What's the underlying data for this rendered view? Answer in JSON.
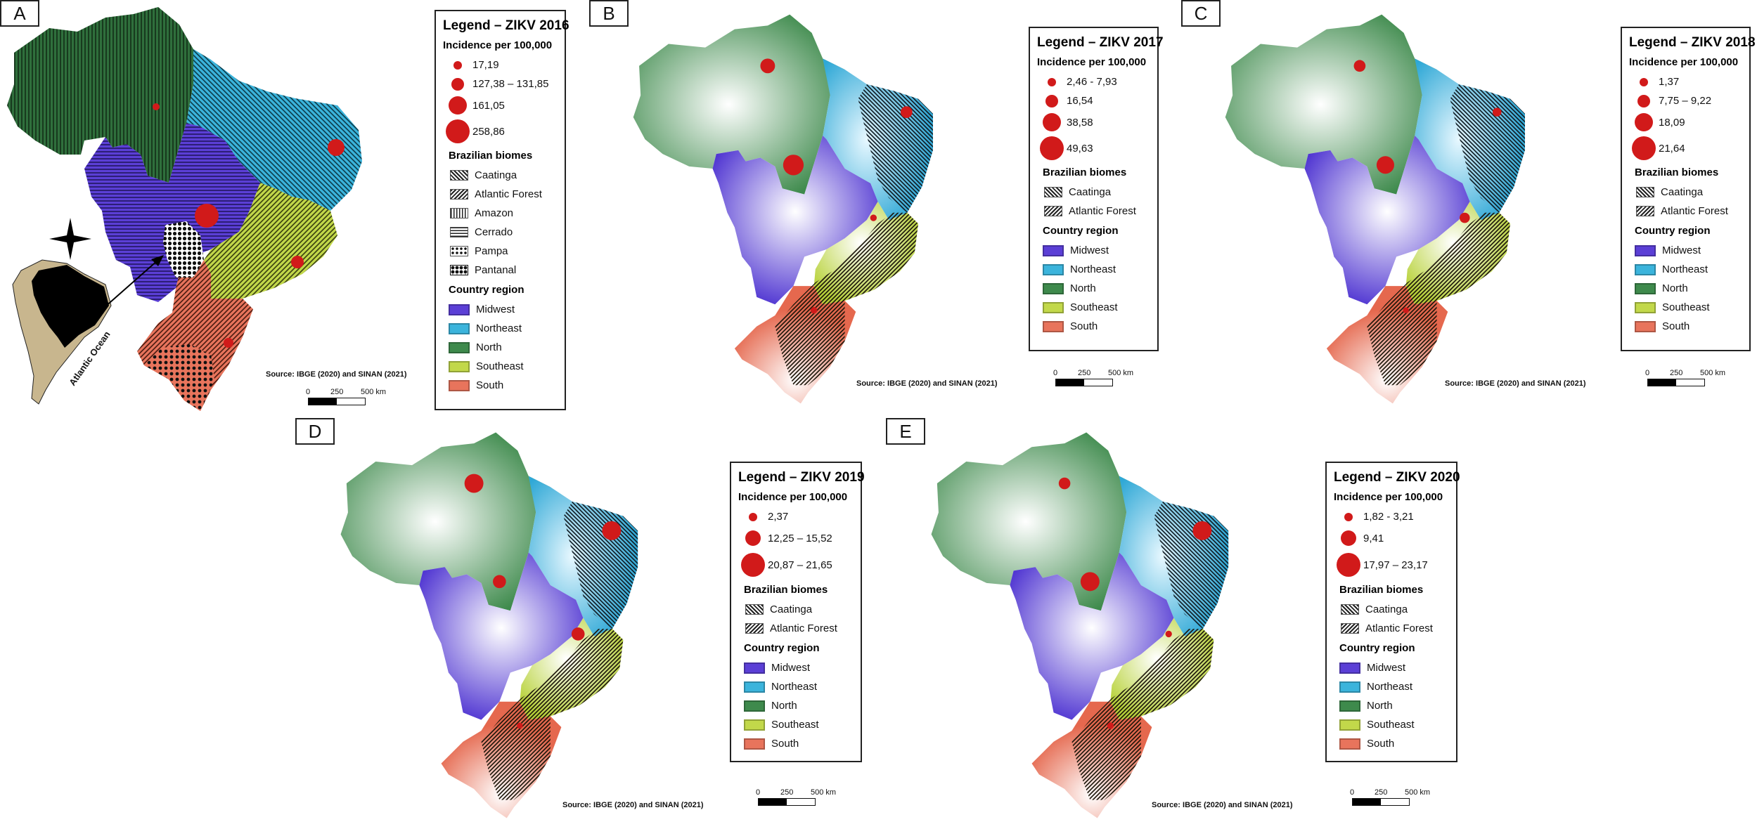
{
  "panels": [
    {
      "letter": "A",
      "legend_title": "Legend – ZIKV 2016",
      "incidence_label": "Incidence per 100,000",
      "incidence_classes": [
        "17,19",
        "127,38 – 131,85",
        "161,05",
        "258,86"
      ],
      "biomes_label": "Brazilian biomes",
      "biomes": [
        "Caatinga",
        "Atlantic Forest",
        "Amazon",
        "Cerrado",
        "Pampa",
        "Pantanal"
      ],
      "regions_label": "Country region",
      "regions": [
        "Midwest",
        "Northeast",
        "North",
        "Southeast",
        "South"
      ],
      "source": "Source: IBGE (2020) and SINAN (2021)",
      "scale_labels": [
        "0",
        "250",
        "500 km"
      ],
      "inset_label": "Atlantic Ocean"
    },
    {
      "letter": "B",
      "legend_title": "Legend – ZIKV 2017",
      "incidence_label": "Incidence per 100,000",
      "incidence_classes": [
        "2,46 - 7,93",
        "16,54",
        "38,58",
        "49,63"
      ],
      "biomes_label": "Brazilian biomes",
      "biomes": [
        "Caatinga",
        "Atlantic Forest"
      ],
      "regions_label": "Country region",
      "regions": [
        "Midwest",
        "Northeast",
        "North",
        "Southeast",
        "South"
      ],
      "source": "Source: IBGE (2020) and SINAN (2021)",
      "scale_labels": [
        "0",
        "250",
        "500 km"
      ]
    },
    {
      "letter": "C",
      "legend_title": "Legend – ZIKV 2018",
      "incidence_label": "Incidence per 100,000",
      "incidence_classes": [
        "1,37",
        "7,75 – 9,22",
        "18,09",
        "21,64"
      ],
      "biomes_label": "Brazilian biomes",
      "biomes": [
        "Caatinga",
        "Atlantic Forest"
      ],
      "regions_label": "Country region",
      "regions": [
        "Midwest",
        "Northeast",
        "North",
        "Southeast",
        "South"
      ],
      "source": "Source: IBGE (2020) and SINAN (2021)",
      "scale_labels": [
        "0",
        "250",
        "500 km"
      ]
    },
    {
      "letter": "D",
      "legend_title": "Legend – ZIKV 2019",
      "incidence_label": "Incidence per 100,000",
      "incidence_classes": [
        "2,37",
        "12,25 – 15,52",
        "20,87 – 21,65"
      ],
      "biomes_label": "Brazilian biomes",
      "biomes": [
        "Caatinga",
        "Atlantic Forest"
      ],
      "regions_label": "Country region",
      "regions": [
        "Midwest",
        "Northeast",
        "North",
        "Southeast",
        "South"
      ],
      "source": "Source: IBGE (2020) and SINAN (2021)",
      "scale_labels": [
        "0",
        "250",
        "500 km"
      ]
    },
    {
      "letter": "E",
      "legend_title": "Legend – ZIKV 2020",
      "incidence_label": "Incidence per 100,000",
      "incidence_classes": [
        "1,82 - 3,21",
        "9,41",
        "17,97 – 23,17"
      ],
      "biomes_label": "Brazilian biomes",
      "biomes": [
        "Caatinga",
        "Atlantic Forest"
      ],
      "regions_label": "Country region",
      "regions": [
        "Midwest",
        "Northeast",
        "North",
        "Southeast",
        "South"
      ],
      "source": "Source: IBGE (2020) and SINAN (2021)",
      "scale_labels": [
        "0",
        "250",
        "500 km"
      ]
    }
  ],
  "region_colors": {
    "Midwest": "#5b3fd6",
    "Northeast": "#3bb4dc",
    "North": "#3e8a4c",
    "Southeast": "#c2d84a",
    "South": "#e8745c"
  },
  "marker_color": "#d11a1a"
}
